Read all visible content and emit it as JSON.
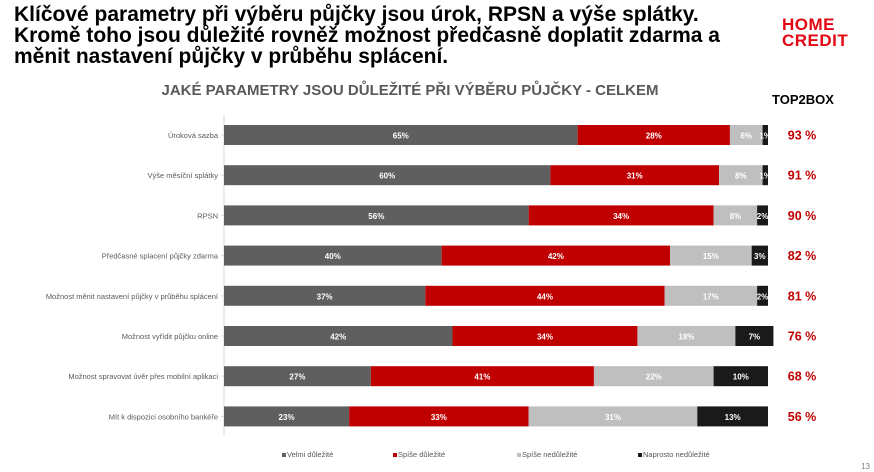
{
  "headline": "Klíčové parametry při výběru půjčky jsou úrok, RPSN a výše splátky. Kromě toho jsou důležité rovněž možnost předčasně doplatit zdarma a měnit nastavení půjčky v průběhu splácení.",
  "logo": {
    "line1": "HOME",
    "line2": "CREDIT"
  },
  "top2box_label": "TOP2BOX",
  "page_number": "13",
  "colors": {
    "velmi": "#5f5f5f",
    "spise": "#c00000",
    "spise_ne": "#bfbfbf",
    "naprosto": "#1a1a1a",
    "top2box": "#c00000"
  },
  "chart_data": {
    "type": "bar",
    "orientation": "horizontal",
    "stacked": true,
    "title": "JAKÉ PARAMETRY JSOU DŮLEŽITÉ PŘI VÝBĚRU PŮJČKY - CELKEM",
    "categories": [
      "Úroková sazba",
      "Výše měsíční splátky",
      "RPSN",
      "Předčasné splacení půjčky zdarma",
      "Možnost měnit nastavení půjčky v průběhu splácení",
      "Možnost vyřídit půjčku online",
      "Možnost spravovat úvěr přes mobilní aplikaci",
      "Mít k dispozici osobního bankéře"
    ],
    "series": [
      {
        "name": "Velmi důležité",
        "values": [
          65,
          60,
          56,
          40,
          37,
          42,
          27,
          23
        ]
      },
      {
        "name": "Spíše důležité",
        "values": [
          28,
          31,
          34,
          42,
          44,
          34,
          41,
          33
        ]
      },
      {
        "name": "Spíše nedůležité",
        "values": [
          6,
          8,
          8,
          15,
          17,
          18,
          22,
          31
        ]
      },
      {
        "name": "Naprosto nedůležité",
        "values": [
          1,
          1,
          2,
          3,
          2,
          7,
          10,
          13
        ]
      }
    ],
    "labels": [
      [
        "65%",
        "28%",
        "6%",
        "1%"
      ],
      [
        "60%",
        "31%",
        "8%",
        "1%"
      ],
      [
        "56%",
        "34%",
        "8%",
        "2%"
      ],
      [
        "40%",
        "42%",
        "15%",
        "3%"
      ],
      [
        "37%",
        "44%",
        "17%",
        "2%"
      ],
      [
        "42%",
        "34%",
        "18%",
        "7%"
      ],
      [
        "27%",
        "41%",
        "22%",
        "10%"
      ],
      [
        "23%",
        "33%",
        "31%",
        "13%"
      ]
    ],
    "top2box": [
      "93 %",
      "91 %",
      "90 %",
      "82 %",
      "81 %",
      "76 %",
      "68 %",
      "56 %"
    ],
    "xlim": [
      0,
      100
    ],
    "legend_position": "bottom",
    "grid": false
  }
}
